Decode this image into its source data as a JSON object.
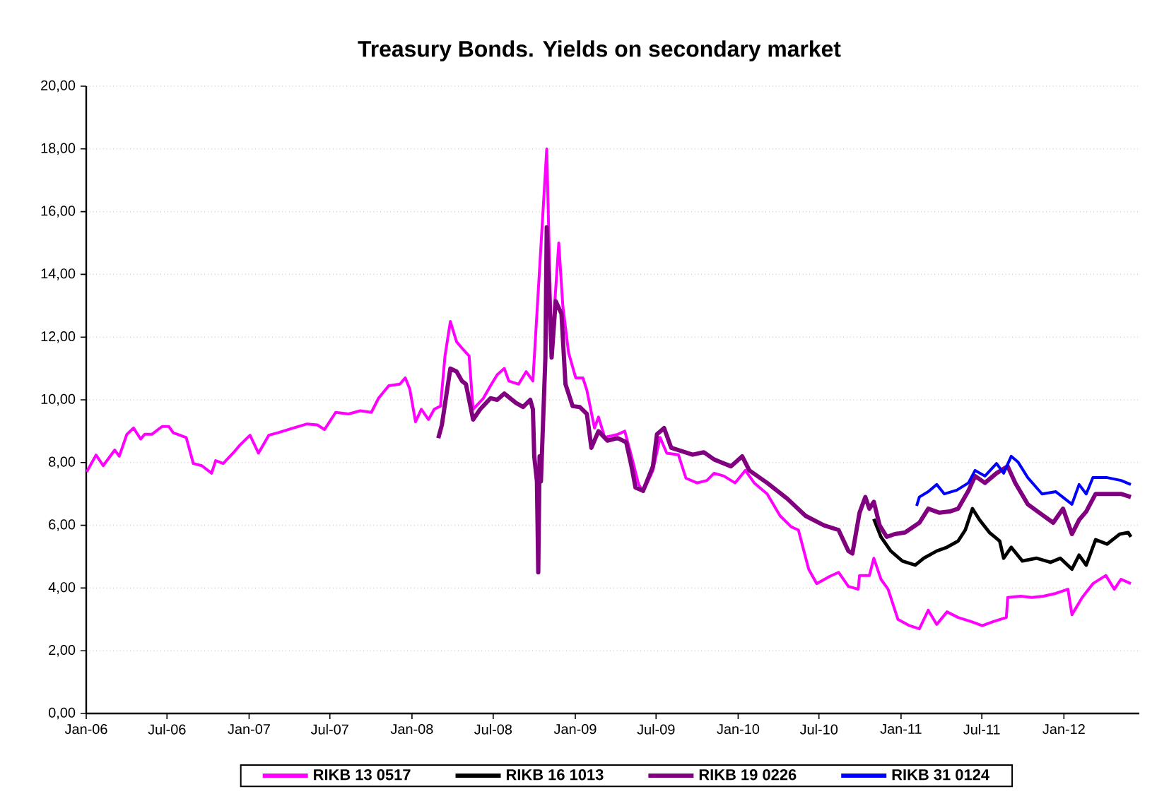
{
  "chart_data": {
    "type": "line",
    "title": "Treasury Bonds. Yields on secondary market",
    "xlim": [
      "2006-01-01",
      "2012-06-18"
    ],
    "xticks": [
      {
        "value": "2006-01-01",
        "label": "Jan-06"
      },
      {
        "value": "2006-07-01",
        "label": "Jul-06"
      },
      {
        "value": "2007-01-01",
        "label": "Jan-07"
      },
      {
        "value": "2007-07-01",
        "label": "Jul-07"
      },
      {
        "value": "2008-01-01",
        "label": "Jan-08"
      },
      {
        "value": "2008-07-01",
        "label": "Jul-08"
      },
      {
        "value": "2009-01-01",
        "label": "Jan-09"
      },
      {
        "value": "2009-07-01",
        "label": "Jul-09"
      },
      {
        "value": "2010-01-01",
        "label": "Jan-10"
      },
      {
        "value": "2010-07-01",
        "label": "Jul-10"
      },
      {
        "value": "2011-01-01",
        "label": "Jan-11"
      },
      {
        "value": "2011-07-01",
        "label": "Jul-11"
      },
      {
        "value": "2012-01-01",
        "label": "Jan-12"
      }
    ],
    "ylim": [
      0,
      20
    ],
    "yticks": [
      {
        "value": 0,
        "label": "0,00"
      },
      {
        "value": 2,
        "label": "2,00"
      },
      {
        "value": 4,
        "label": "4,00"
      },
      {
        "value": 6,
        "label": "6,00"
      },
      {
        "value": 8,
        "label": "8,00"
      },
      {
        "value": 10,
        "label": "10,00"
      },
      {
        "value": 12,
        "label": "12,00"
      },
      {
        "value": 14,
        "label": "14,00"
      },
      {
        "value": 16,
        "label": "16,00"
      },
      {
        "value": 18,
        "label": "18,00"
      },
      {
        "value": 20,
        "label": "20,00"
      }
    ],
    "grid": "y",
    "legend": "bottom",
    "line_style": "solid",
    "series": [
      {
        "name": "RIKB 13 0517",
        "color": "#ff00ff",
        "x": [
          "2006-01-02",
          "2006-01-23",
          "2006-02-08",
          "2006-03-06",
          "2006-03-16",
          "2006-04-02",
          "2006-04-17",
          "2006-05-03",
          "2006-05-12",
          "2006-05-28",
          "2006-06-20",
          "2006-07-05",
          "2006-07-15",
          "2006-08-13",
          "2006-08-29",
          "2006-09-17",
          "2006-10-09",
          "2006-10-18",
          "2006-11-04",
          "2006-11-26",
          "2006-12-11",
          "2007-01-03",
          "2007-01-22",
          "2007-02-14",
          "2007-03-09",
          "2007-04-10",
          "2007-05-11",
          "2007-06-03",
          "2007-06-19",
          "2007-07-14",
          "2007-08-12",
          "2007-09-07",
          "2007-10-02",
          "2007-10-18",
          "2007-11-10",
          "2007-12-05",
          "2007-12-17",
          "2007-12-27",
          "2008-01-09",
          "2008-01-22",
          "2008-02-07",
          "2008-02-20",
          "2008-03-05",
          "2008-03-15",
          "2008-03-27",
          "2008-04-10",
          "2008-04-25",
          "2008-05-08",
          "2008-05-17",
          "2008-06-09",
          "2008-06-25",
          "2008-07-10",
          "2008-07-26",
          "2008-08-05",
          "2008-08-27",
          "2008-09-13",
          "2008-09-28",
          "2008-10-29",
          "2008-11-09",
          "2008-11-25",
          "2008-12-04",
          "2008-12-17",
          "2009-01-02",
          "2009-01-18",
          "2009-01-27",
          "2009-02-13",
          "2009-02-22",
          "2009-03-08",
          "2009-04-06",
          "2009-04-22",
          "2009-05-07",
          "2009-05-23",
          "2009-06-02",
          "2009-06-24",
          "2009-07-10",
          "2009-07-25",
          "2009-08-20",
          "2009-09-06",
          "2009-10-01",
          "2009-10-23",
          "2009-11-08",
          "2009-11-30",
          "2009-12-25",
          "2010-01-17",
          "2010-02-06",
          "2010-03-07",
          "2010-04-05",
          "2010-04-30",
          "2010-05-16",
          "2010-06-08",
          "2010-06-26",
          "2010-07-25",
          "2010-08-14",
          "2010-09-05",
          "2010-09-27",
          "2010-09-30",
          "2010-10-22",
          "2010-11-01",
          "2010-11-17",
          "2010-12-03",
          "2010-12-25",
          "2011-01-20",
          "2011-02-11",
          "2011-03-03",
          "2011-03-22",
          "2011-04-14",
          "2011-05-09",
          "2011-06-07",
          "2011-07-02",
          "2011-07-27",
          "2011-08-25",
          "2011-08-28",
          "2011-09-26",
          "2011-10-21",
          "2011-11-16",
          "2011-12-14",
          "2012-01-10",
          "2012-01-19",
          "2012-02-11",
          "2012-03-06",
          "2012-04-04",
          "2012-04-23",
          "2012-05-08",
          "2012-05-30"
        ],
        "values": [
          7.7,
          8.24,
          7.9,
          8.4,
          8.2,
          8.9,
          9.1,
          8.75,
          8.9,
          8.9,
          9.15,
          9.15,
          8.95,
          8.8,
          7.97,
          7.9,
          7.66,
          8.06,
          7.97,
          8.3,
          8.55,
          8.87,
          8.3,
          8.87,
          8.96,
          9.1,
          9.23,
          9.2,
          9.05,
          9.6,
          9.55,
          9.65,
          9.6,
          10.05,
          10.45,
          10.5,
          10.7,
          10.35,
          9.3,
          9.7,
          9.37,
          9.7,
          9.8,
          11.4,
          12.5,
          11.85,
          11.6,
          11.4,
          9.7,
          10.05,
          10.45,
          10.8,
          11.0,
          10.6,
          10.5,
          10.9,
          10.6,
          18.0,
          11.6,
          15.0,
          13.0,
          11.5,
          10.7,
          10.7,
          10.3,
          9.1,
          9.45,
          8.8,
          8.9,
          9.0,
          8.2,
          7.3,
          7.07,
          7.75,
          8.8,
          8.3,
          8.25,
          7.5,
          7.35,
          7.43,
          7.66,
          7.57,
          7.35,
          7.75,
          7.35,
          7.0,
          6.3,
          5.95,
          5.85,
          4.6,
          4.14,
          4.37,
          4.5,
          4.05,
          3.96,
          4.4,
          4.4,
          4.95,
          4.28,
          3.96,
          3.0,
          2.8,
          2.7,
          3.29,
          2.84,
          3.24,
          3.06,
          2.93,
          2.8,
          2.93,
          3.06,
          3.7,
          3.74,
          3.7,
          3.74,
          3.83,
          3.96,
          3.15,
          3.7,
          4.14,
          4.4,
          3.96,
          4.28,
          4.14
        ]
      },
      {
        "name": "RIKB 16 1013",
        "color": "#000000",
        "x": [
          "2010-11-01",
          "2010-11-17",
          "2010-12-09",
          "2011-01-04",
          "2011-02-02",
          "2011-02-21",
          "2011-03-22",
          "2011-04-14",
          "2011-05-09",
          "2011-05-25",
          "2011-06-10",
          "2011-06-26",
          "2011-07-18",
          "2011-08-10",
          "2011-08-19",
          "2011-09-05",
          "2011-09-30",
          "2011-11-01",
          "2011-12-02",
          "2011-12-24",
          "2012-01-19",
          "2012-02-04",
          "2012-02-20",
          "2012-03-12",
          "2012-04-07",
          "2012-05-05",
          "2012-05-24",
          "2012-05-30"
        ],
        "values": [
          6.2,
          5.63,
          5.18,
          4.86,
          4.73,
          4.95,
          5.18,
          5.3,
          5.5,
          5.85,
          6.53,
          6.17,
          5.77,
          5.5,
          4.95,
          5.3,
          4.86,
          4.95,
          4.82,
          4.95,
          4.6,
          5.05,
          4.73,
          5.54,
          5.4,
          5.72,
          5.77,
          5.63
        ]
      },
      {
        "name": "RIKB 19 0226",
        "color": "#800080",
        "x": [
          "2008-02-29",
          "2008-03-08",
          "2008-03-27",
          "2008-04-10",
          "2008-04-22",
          "2008-05-01",
          "2008-05-17",
          "2008-06-02",
          "2008-06-25",
          "2008-07-10",
          "2008-07-26",
          "2008-08-21",
          "2008-09-06",
          "2008-09-22",
          "2008-09-28",
          "2008-10-01",
          "2008-10-07",
          "2008-10-10",
          "2008-10-13",
          "2008-10-16",
          "2008-10-26",
          "2008-10-29",
          "2008-11-09",
          "2008-11-18",
          "2008-12-01",
          "2008-12-10",
          "2008-12-26",
          "2009-01-11",
          "2009-01-27",
          "2009-02-06",
          "2009-02-22",
          "2009-03-14",
          "2009-04-06",
          "2009-04-25",
          "2009-05-07",
          "2009-05-16",
          "2009-06-02",
          "2009-06-24",
          "2009-07-03",
          "2009-07-19",
          "2009-08-04",
          "2009-08-20",
          "2009-09-21",
          "2009-10-16",
          "2009-11-08",
          "2009-12-16",
          "2010-01-10",
          "2010-01-26",
          "2010-03-07",
          "2010-04-21",
          "2010-06-01",
          "2010-07-12",
          "2010-08-14",
          "2010-09-05",
          "2010-09-14",
          "2010-09-30",
          "2010-10-13",
          "2010-10-22",
          "2010-11-01",
          "2010-11-14",
          "2010-11-30",
          "2010-12-18",
          "2011-01-10",
          "2011-02-11",
          "2011-03-03",
          "2011-03-28",
          "2011-04-20",
          "2011-05-09",
          "2011-06-01",
          "2011-06-16",
          "2011-07-08",
          "2011-08-03",
          "2011-08-28",
          "2011-09-14",
          "2011-10-12",
          "2011-11-07",
          "2011-12-08",
          "2011-12-30",
          "2012-01-19",
          "2012-02-04",
          "2012-02-20",
          "2012-03-12",
          "2012-04-13",
          "2012-05-08",
          "2012-05-30"
        ],
        "values": [
          8.78,
          9.2,
          11.0,
          10.9,
          10.6,
          10.5,
          9.37,
          9.7,
          10.05,
          10.0,
          10.2,
          9.9,
          9.77,
          10.0,
          9.7,
          8.2,
          7.4,
          4.5,
          8.2,
          7.4,
          11.35,
          15.5,
          11.35,
          13.15,
          12.75,
          10.5,
          9.8,
          9.77,
          9.55,
          8.47,
          9.0,
          8.7,
          8.78,
          8.65,
          7.88,
          7.2,
          7.1,
          7.88,
          8.9,
          9.1,
          8.47,
          8.4,
          8.25,
          8.33,
          8.1,
          7.88,
          8.2,
          7.75,
          7.35,
          6.85,
          6.3,
          6.0,
          5.85,
          5.18,
          5.1,
          6.4,
          6.9,
          6.53,
          6.75,
          6.0,
          5.63,
          5.72,
          5.77,
          6.08,
          6.53,
          6.4,
          6.44,
          6.53,
          7.1,
          7.57,
          7.35,
          7.66,
          7.88,
          7.35,
          6.67,
          6.4,
          6.08,
          6.53,
          5.72,
          6.17,
          6.44,
          7.0,
          7.0,
          7.0,
          6.9
        ]
      },
      {
        "name": "RIKB 31 0124",
        "color": "#0000ff",
        "x": [
          "2011-02-05",
          "2011-02-11",
          "2011-03-03",
          "2011-03-22",
          "2011-04-08",
          "2011-05-06",
          "2011-06-01",
          "2011-06-16",
          "2011-07-08",
          "2011-08-03",
          "2011-08-19",
          "2011-09-05",
          "2011-09-20",
          "2011-10-12",
          "2011-11-13",
          "2011-12-14",
          "2012-01-19",
          "2012-02-04",
          "2012-02-20",
          "2012-03-06",
          "2012-04-07",
          "2012-05-08",
          "2012-05-30"
        ],
        "values": [
          6.62,
          6.9,
          7.07,
          7.3,
          7.0,
          7.12,
          7.35,
          7.75,
          7.57,
          7.97,
          7.66,
          8.2,
          8.02,
          7.52,
          7.0,
          7.07,
          6.67,
          7.3,
          7.0,
          7.52,
          7.52,
          7.43,
          7.3
        ]
      }
    ]
  }
}
